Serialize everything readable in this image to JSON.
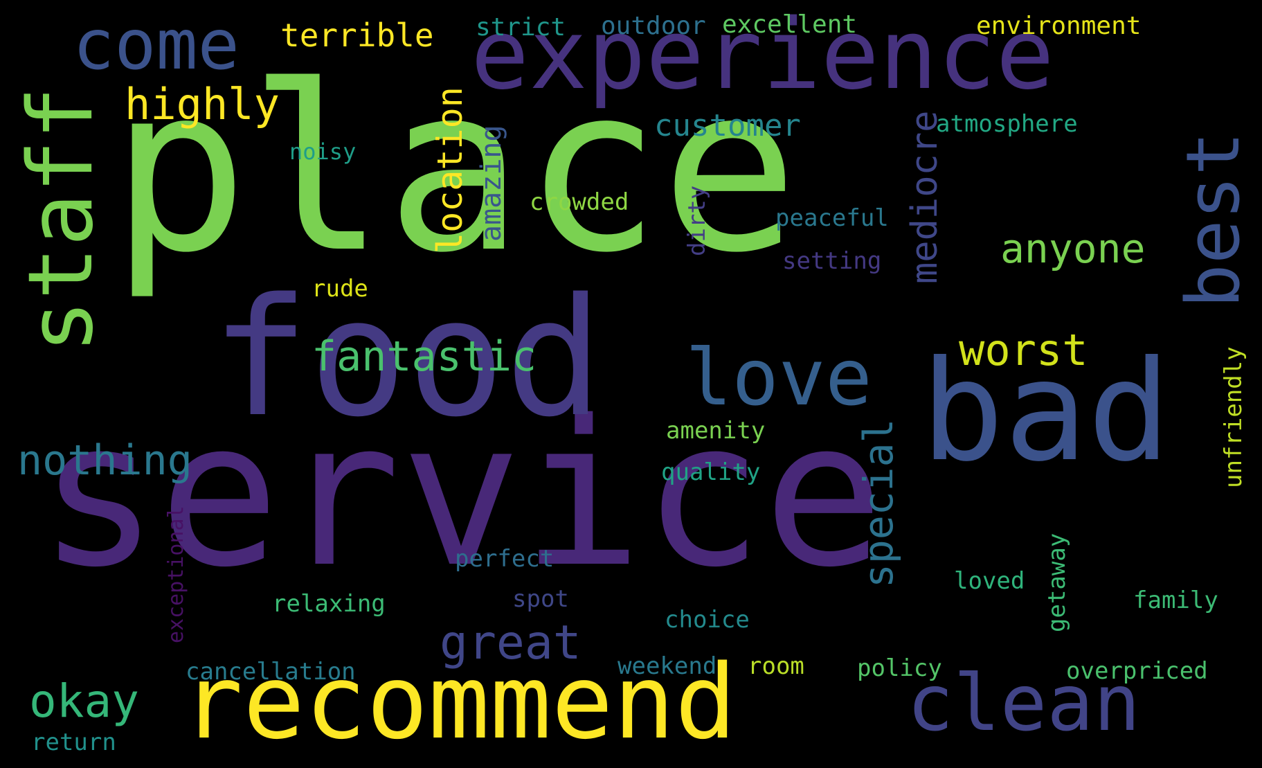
{
  "cloud": {
    "background": "#000000",
    "words": [
      {
        "text": "place",
        "weight": 1.0,
        "color": "#7AD151",
        "orientation": "horizontal"
      },
      {
        "text": "service",
        "weight": 0.95,
        "color": "#482878",
        "orientation": "horizontal"
      },
      {
        "text": "food",
        "weight": 0.75,
        "color": "#443A83",
        "orientation": "horizontal"
      },
      {
        "text": "experience",
        "weight": 0.55,
        "color": "#46327E",
        "orientation": "horizontal"
      },
      {
        "text": "recommend",
        "weight": 0.55,
        "color": "#FDE725",
        "orientation": "horizontal"
      },
      {
        "text": "bad",
        "weight": 0.55,
        "color": "#3B528B",
        "orientation": "horizontal"
      },
      {
        "text": "staff",
        "weight": 0.48,
        "color": "#7AD151",
        "orientation": "vertical"
      },
      {
        "text": "clean",
        "weight": 0.4,
        "color": "#414487",
        "orientation": "horizontal"
      },
      {
        "text": "best",
        "weight": 0.38,
        "color": "#3B528B",
        "orientation": "vertical"
      },
      {
        "text": "love",
        "weight": 0.38,
        "color": "#355F8D",
        "orientation": "horizontal"
      },
      {
        "text": "come",
        "weight": 0.35,
        "color": "#3B528B",
        "orientation": "horizontal"
      },
      {
        "text": "great",
        "weight": 0.25,
        "color": "#404688",
        "orientation": "horizontal"
      },
      {
        "text": "okay",
        "weight": 0.25,
        "color": "#35B779",
        "orientation": "horizontal"
      },
      {
        "text": "mediocre",
        "weight": 0.22,
        "color": "#3F4788",
        "orientation": "vertical"
      },
      {
        "text": "fantastic",
        "weight": 0.22,
        "color": "#4AC16D",
        "orientation": "horizontal"
      },
      {
        "text": "highly",
        "weight": 0.22,
        "color": "#FDE725",
        "orientation": "horizontal"
      },
      {
        "text": "worst",
        "weight": 0.22,
        "color": "#D2E21B",
        "orientation": "horizontal"
      },
      {
        "text": "nothing",
        "weight": 0.22,
        "color": "#2A788E",
        "orientation": "horizontal"
      },
      {
        "text": "special",
        "weight": 0.21,
        "color": "#2C728E",
        "orientation": "vertical"
      },
      {
        "text": "location",
        "weight": 0.21,
        "color": "#FDE725",
        "orientation": "vertical"
      },
      {
        "text": "anyone",
        "weight": 0.2,
        "color": "#7AD151",
        "orientation": "horizontal"
      },
      {
        "text": "terrible",
        "weight": 0.18,
        "color": "#FDE725",
        "orientation": "horizontal"
      },
      {
        "text": "customer",
        "weight": 0.17,
        "color": "#25858E",
        "orientation": "horizontal"
      },
      {
        "text": "amazing",
        "weight": 0.15,
        "color": "#39568C",
        "orientation": "vertical"
      },
      {
        "text": "environment",
        "weight": 0.14,
        "color": "#E5E419",
        "orientation": "horizontal"
      },
      {
        "text": "excellent",
        "weight": 0.14,
        "color": "#5EC962",
        "orientation": "horizontal"
      },
      {
        "text": "outdoor",
        "weight": 0.14,
        "color": "#2D708E",
        "orientation": "horizontal"
      },
      {
        "text": "strict",
        "weight": 0.14,
        "color": "#1F968B",
        "orientation": "horizontal"
      },
      {
        "text": "atmosphere",
        "weight": 0.13,
        "color": "#22A884",
        "orientation": "horizontal"
      },
      {
        "text": "noisy",
        "weight": 0.13,
        "color": "#1F9E89",
        "orientation": "horizontal"
      },
      {
        "text": "crowded",
        "weight": 0.14,
        "color": "#8FD744",
        "orientation": "horizontal"
      },
      {
        "text": "peaceful",
        "weight": 0.14,
        "color": "#2A788E",
        "orientation": "horizontal"
      },
      {
        "text": "dirty",
        "weight": 0.13,
        "color": "#433E85",
        "orientation": "vertical"
      },
      {
        "text": "setting",
        "weight": 0.13,
        "color": "#443983",
        "orientation": "horizontal"
      },
      {
        "text": "rude",
        "weight": 0.13,
        "color": "#DDE318",
        "orientation": "horizontal"
      },
      {
        "text": "unfriendly",
        "weight": 0.13,
        "color": "#C0DF25",
        "orientation": "vertical"
      },
      {
        "text": "amenity",
        "weight": 0.14,
        "color": "#7AD151",
        "orientation": "horizontal"
      },
      {
        "text": "quality",
        "weight": 0.14,
        "color": "#20A386",
        "orientation": "horizontal"
      },
      {
        "text": "exceptional",
        "weight": 0.13,
        "color": "#471164",
        "orientation": "vertical"
      },
      {
        "text": "perfect",
        "weight": 0.14,
        "color": "#2E6E8E",
        "orientation": "horizontal"
      },
      {
        "text": "relaxing",
        "weight": 0.14,
        "color": "#3CBB75",
        "orientation": "horizontal"
      },
      {
        "text": "spot",
        "weight": 0.14,
        "color": "#3F4788",
        "orientation": "horizontal"
      },
      {
        "text": "choice",
        "weight": 0.14,
        "color": "#238A8D",
        "orientation": "horizontal"
      },
      {
        "text": "loved",
        "weight": 0.14,
        "color": "#2FB47C",
        "orientation": "horizontal"
      },
      {
        "text": "getaway",
        "weight": 0.13,
        "color": "#3CBB75",
        "orientation": "vertical"
      },
      {
        "text": "family",
        "weight": 0.14,
        "color": "#3CBB75",
        "orientation": "horizontal"
      },
      {
        "text": "cancellation",
        "weight": 0.14,
        "color": "#287C8E",
        "orientation": "horizontal"
      },
      {
        "text": "weekend",
        "weight": 0.14,
        "color": "#29798E",
        "orientation": "horizontal"
      },
      {
        "text": "room",
        "weight": 0.14,
        "color": "#BADE28",
        "orientation": "horizontal"
      },
      {
        "text": "policy",
        "weight": 0.14,
        "color": "#54C568",
        "orientation": "horizontal"
      },
      {
        "text": "overpriced",
        "weight": 0.14,
        "color": "#4AC16D",
        "orientation": "horizontal"
      },
      {
        "text": "return",
        "weight": 0.13,
        "color": "#21918C",
        "orientation": "horizontal"
      }
    ]
  }
}
